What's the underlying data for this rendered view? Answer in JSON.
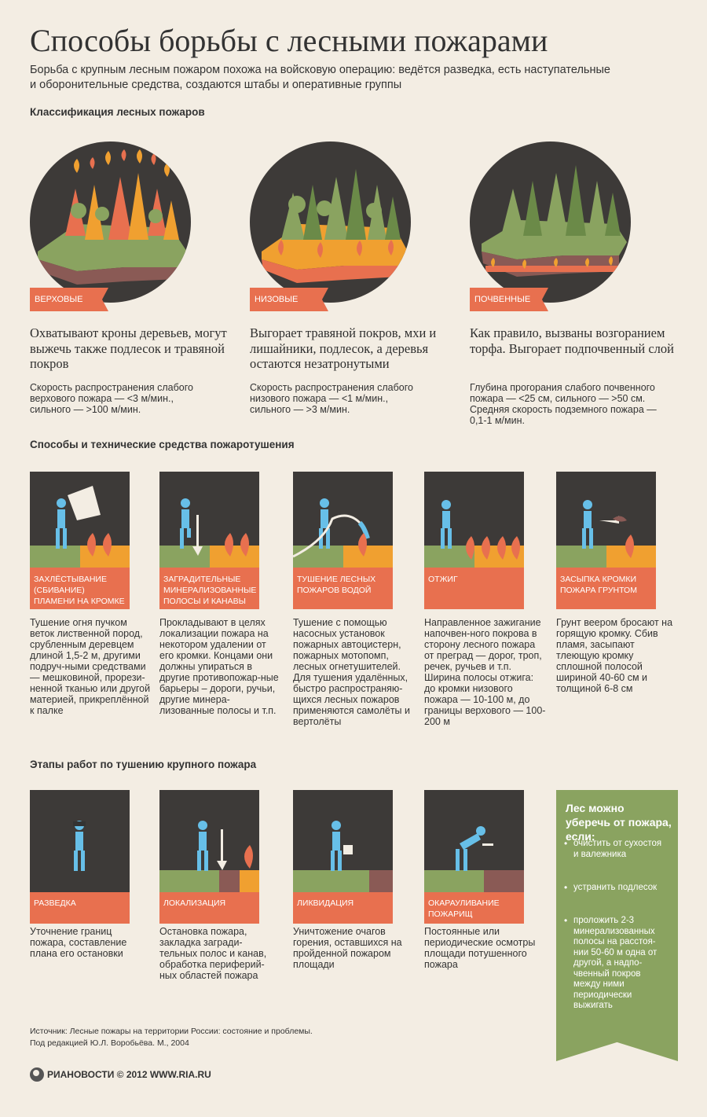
{
  "header": {
    "title": "Способы борьбы с лесными пожарами",
    "lead": "Борьба с крупным лесным пожаром похожа на войсковую операцию: ведётся разведка, есть наступательные и оборонительные средства, создаются штабы и оперативные группы"
  },
  "classification": {
    "heading": "Классификация лесных пожаров",
    "items": [
      {
        "label": "верховые",
        "description": "Охватывают кроны деревьев, могут выжечь также подлесок и травяной покров",
        "details": "Скорость распространения слабого верхового пожара — <3 м/мин., сильного — >100 м/мин."
      },
      {
        "label": "низовые",
        "description": "Выгорает травяной покров, мхи и лишайники, подлесок, а деревья остаются незатронутыми",
        "details": "Скорость распространения слабого низового пожара — <1 м/мин., сильного — >3 м/мин."
      },
      {
        "label": "почвенные",
        "description": "Как правило, вызваны возгоранием торфа. Выгорает подпочвенный слой",
        "details": "Глубина прогорания слабого почвенного пожара — <25 см, сильного — >50 см. Средняя скорость подземного пожара — 0,1-1 м/мин."
      }
    ]
  },
  "methods": {
    "heading": "Способы и технические средства пожаротушения",
    "items": [
      {
        "label": "Захлёстывание (сбивание) пламени на кромке пожара",
        "text": "Тушение огня пучком веток лиственной пород, срубленным деревцем длиной 1,5-2 м, другими подруч-ными средствами — мешковиной, прорези-ненной тканью или другой материей, прикреплённой к палке"
      },
      {
        "label": "Заградительные минерализованные полосы и канавы",
        "text": "Прокладывают в целях локализации пожара на некотором удалении от его кромки. Концами они должны упираться в другие противопожар-ные барьеры – дороги, ручьи, другие минера-лизованные полосы и т.п."
      },
      {
        "label": "Тушение лесных пожаров водой",
        "text": "Тушение с помощью насосных установок пожарных автоцистерн, пожарных мотопомп, лесных огнетушителей. Для тушения удалённых, быстро распространяю-щихся лесных пожаров применяются самолёты и вертолёты"
      },
      {
        "label": "Отжиг",
        "text": "Направленное зажигание напочвен-ного покрова в сторону лесного пожара от преград — дорог, троп, речек, ручьев и т.п. Ширина полосы отжига: до кромки низового пожара — 10-100 м, до границы верхового — 100-200 м"
      },
      {
        "label": "Засыпка кромки пожара грунтом",
        "text": "Грунт веером бросают на горящую кромку. Сбив пламя, засыпают тлеющую кромку сплошной полосой шириной 40-60 см и толщиной 6-8 см"
      }
    ]
  },
  "stages": {
    "heading": "Этапы работ по тушению крупного пожара",
    "items": [
      {
        "label": "Разведка",
        "text": "Уточнение границ пожара, составление плана его остановки"
      },
      {
        "label": "Локализация",
        "text": "Остановка пожара, закладка загради-тельных полос и канав, обработка периферий-ных областей пожара"
      },
      {
        "label": "Ликвидация",
        "text": "Уничтожение очагов горения, оставшихся на пройденной пожаром площади"
      },
      {
        "label": "Окарауливание пожарищ",
        "text": "Постоянные или периодические осмотры площади потушенного пожара"
      }
    ]
  },
  "tips": {
    "heading": "Лес можно уберечь от пожара, если:",
    "items": [
      "очистить от сухостоя и валежника",
      "устранить подлесок",
      "проложить 2-3 минерализованных полосы на расстоя-нии 50-60 м одна от другой, а надпо-чвенный покров между ними периодически выжигать"
    ]
  },
  "footer": {
    "source_line1": "Источник: Лесные пожары на территории России: состояние и проблемы.",
    "source_line2": "Под редакцией Ю.Л. Воробьёва. М., 2004",
    "logo_text": "РИАНОВОСТИ © 2012 WWW.RIA.RU"
  },
  "colors": {
    "background": "#f3ede3",
    "dark": "#3d3a38",
    "accent": "#e8704f",
    "green": "#8aa360",
    "figure": "#67bfe8",
    "flame": "#f0a030"
  }
}
